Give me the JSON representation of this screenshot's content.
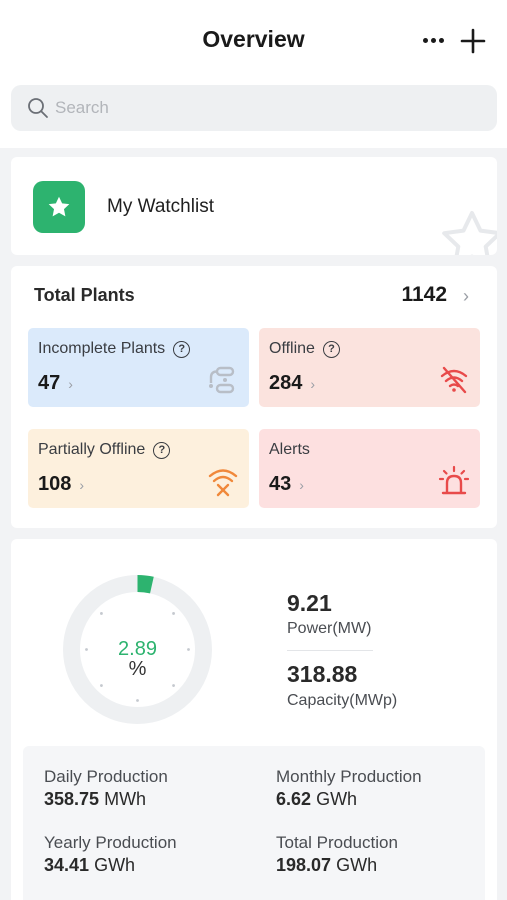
{
  "header": {
    "title": "Overview"
  },
  "search": {
    "placeholder": "Search"
  },
  "watchlist": {
    "label": "My Watchlist"
  },
  "plants": {
    "title": "Total Plants",
    "total": "1142",
    "tiles": [
      {
        "label": "Incomplete Plants",
        "value": "47"
      },
      {
        "label": "Offline",
        "value": "284"
      },
      {
        "label": "Partially Offline",
        "value": "108"
      },
      {
        "label": "Alerts",
        "value": "43"
      }
    ]
  },
  "summary": {
    "percent_value": "2.89",
    "percent_unit": "%",
    "percent_fraction": 0.0289,
    "power_value": "9.21",
    "power_label": "Power(MW)",
    "capacity_value": "318.88",
    "capacity_label": "Capacity(MWp)"
  },
  "production": {
    "daily_label": "Daily Production",
    "daily_value": "358.75",
    "daily_unit": "MWh",
    "monthly_label": "Monthly Production",
    "monthly_value": "6.62",
    "monthly_unit": "GWh",
    "yearly_label": "Yearly Production",
    "yearly_value": "34.41",
    "yearly_unit": "GWh",
    "total_label": "Total Production",
    "total_value": "198.07",
    "total_unit": "GWh"
  },
  "colors": {
    "accent": "#2db36f",
    "offline": "#e84a4a",
    "partial": "#f0883a",
    "incomplete_icon": "#b8bec7"
  }
}
